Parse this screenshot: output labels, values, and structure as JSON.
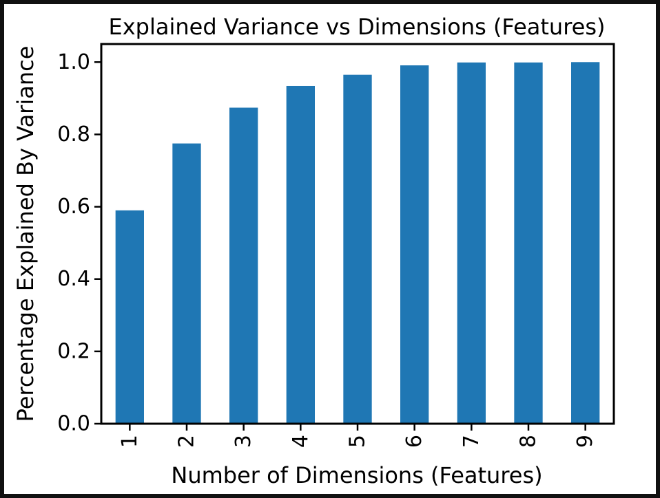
{
  "chart_data": {
    "type": "bar",
    "title": "Explained Variance vs Dimensions (Features)",
    "xlabel": "Number of Dimensions (Features)",
    "ylabel": "Percentage Explained By Variance",
    "categories": [
      "1",
      "2",
      "3",
      "4",
      "5",
      "6",
      "7",
      "8",
      "9"
    ],
    "values": [
      0.59,
      0.775,
      0.874,
      0.934,
      0.965,
      0.991,
      0.999,
      0.999,
      1.0
    ],
    "ylim": [
      0,
      1.05
    ],
    "yticks": [
      0.0,
      0.2,
      0.4,
      0.6,
      0.8,
      1.0
    ],
    "ytick_labels": [
      "0.0",
      "0.2",
      "0.4",
      "0.6",
      "0.8",
      "1.0"
    ],
    "bar_color": "#1f77b4",
    "background_color": "#ffffff",
    "frame_color": "#111111",
    "grid": false,
    "legend": false
  }
}
